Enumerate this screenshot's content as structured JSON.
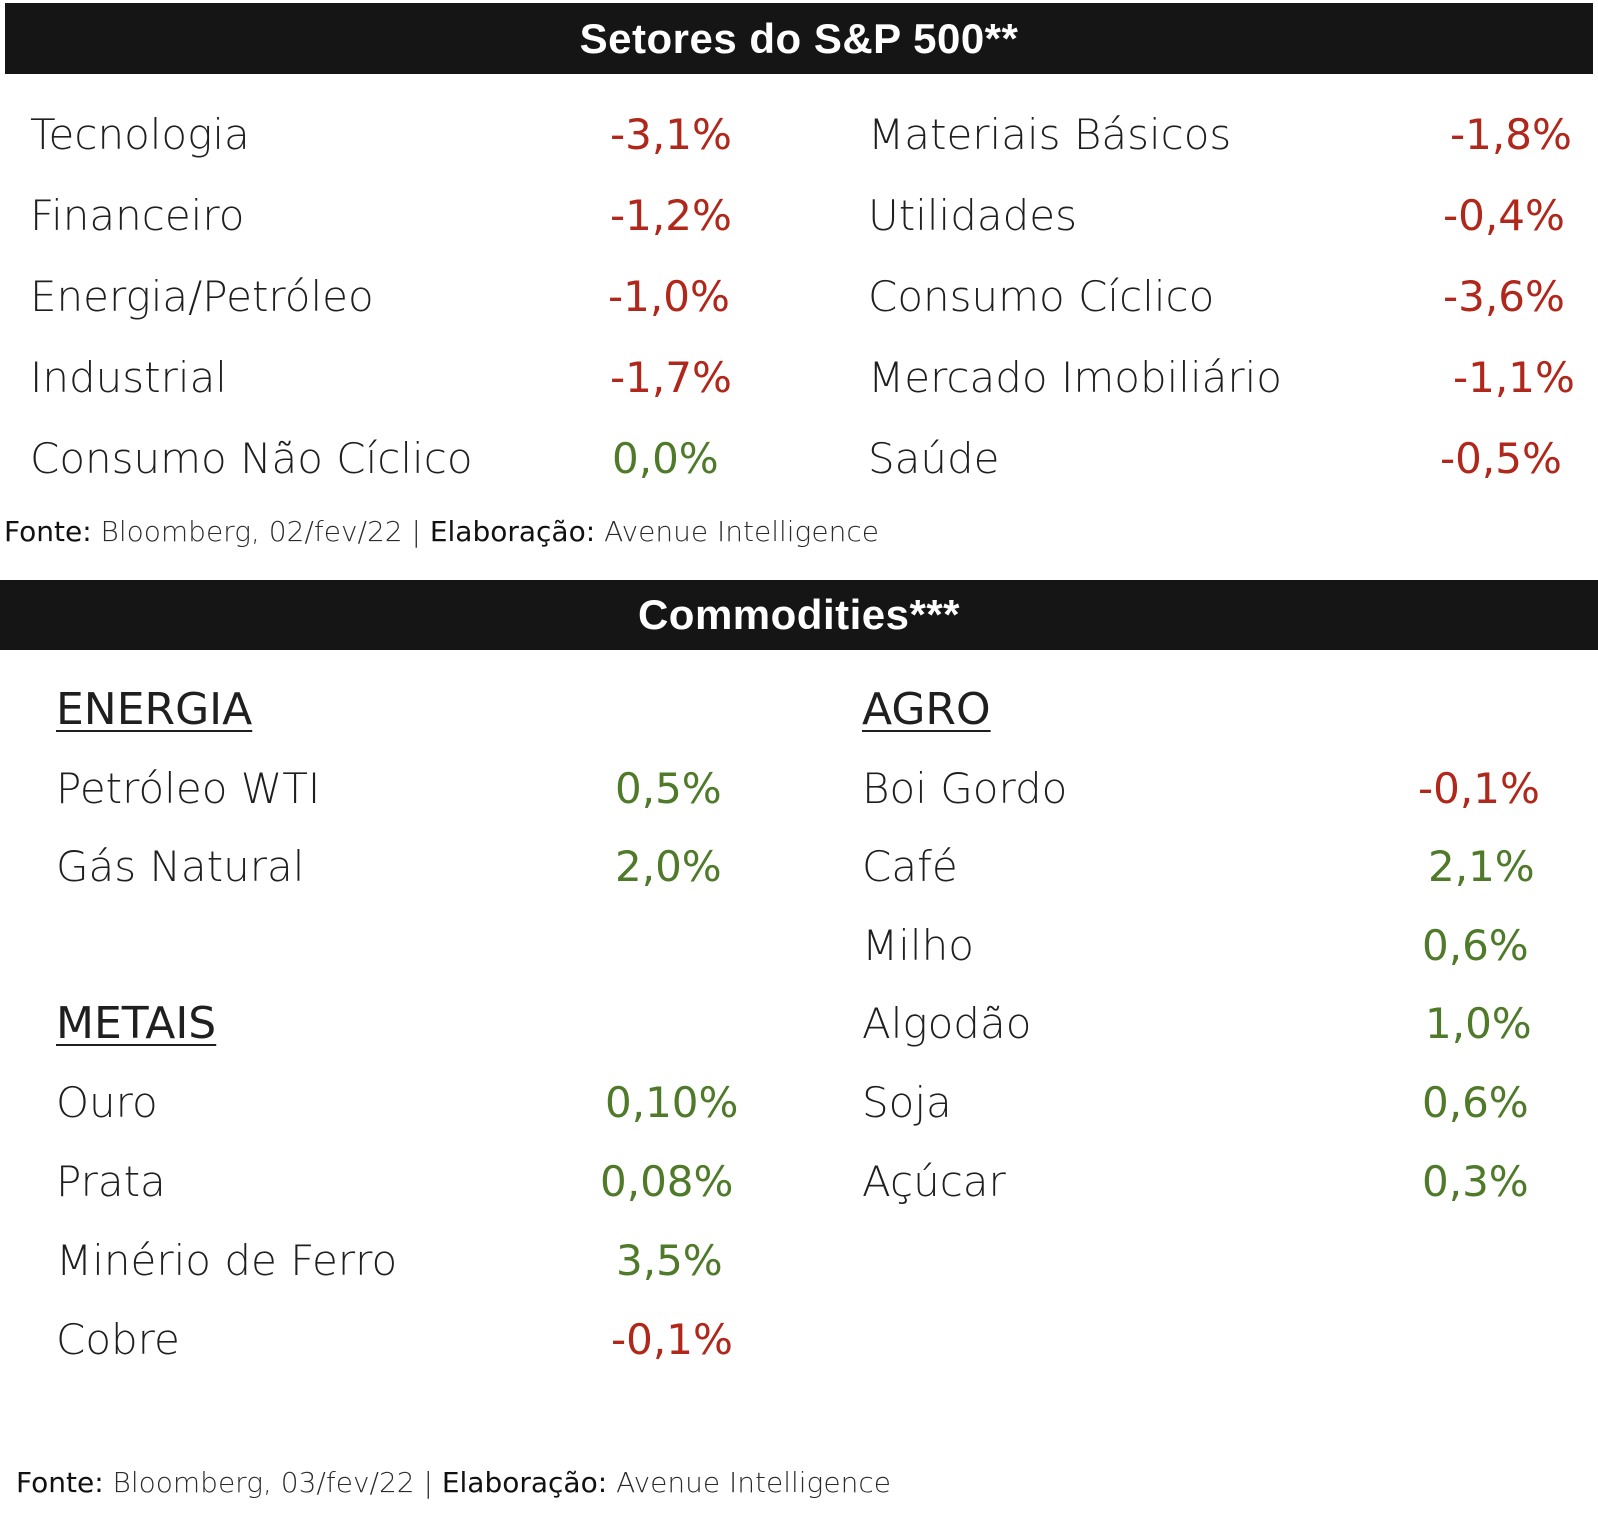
{
  "sectors": {
    "title": "Setores do S&P 500**",
    "left": [
      {
        "name": "Tecnologia",
        "value": "-3,1%",
        "tone": "neg"
      },
      {
        "name": "Financeiro",
        "value": "-1,2%",
        "tone": "neg"
      },
      {
        "name": "Energia/Petróleo",
        "value": "-1,0%",
        "tone": "neg"
      },
      {
        "name": "Industrial",
        "value": "-1,7%",
        "tone": "neg"
      },
      {
        "name": "Consumo Não Cíclico",
        "value": "0,0%",
        "tone": "pos"
      }
    ],
    "right": [
      {
        "name": "Materiais Básicos",
        "value": "-1,8%",
        "tone": "neg"
      },
      {
        "name": "Utilidades",
        "value": "-0,4%",
        "tone": "neg"
      },
      {
        "name": "Consumo Cíclico",
        "value": "-3,6%",
        "tone": "neg"
      },
      {
        "name": "Mercado Imobiliário",
        "value": "-1,1%",
        "tone": "neg"
      },
      {
        "name": "Saúde",
        "value": "-0,5%",
        "tone": "neg"
      }
    ],
    "source": {
      "fonte_label": "Fonte:",
      "fonte_text": "Bloomberg, 02/fev/22 |",
      "elab_label": "Elaboração:",
      "elab_text": "Avenue Intelligence"
    }
  },
  "commodities": {
    "title": "Commodities***",
    "energia": {
      "heading": "ENERGIA",
      "items": [
        {
          "name": "Petróleo WTI",
          "value": "0,5%",
          "tone": "pos"
        },
        {
          "name": "Gás Natural",
          "value": "2,0%",
          "tone": "pos"
        }
      ]
    },
    "metais": {
      "heading": "METAIS",
      "items": [
        {
          "name": "Ouro",
          "value": "0,10%",
          "tone": "pos"
        },
        {
          "name": "Prata",
          "value": "0,08%",
          "tone": "pos"
        },
        {
          "name": "Minério de Ferro",
          "value": "3,5%",
          "tone": "pos"
        },
        {
          "name": "Cobre",
          "value": "-0,1%",
          "tone": "neg"
        }
      ]
    },
    "agro": {
      "heading": "AGRO",
      "items": [
        {
          "name": "Boi Gordo",
          "value": "-0,1%",
          "tone": "neg"
        },
        {
          "name": "Café",
          "value": "2,1%",
          "tone": "pos"
        },
        {
          "name": "Milho",
          "value": "0,6%",
          "tone": "pos"
        },
        {
          "name": "Algodão",
          "value": "1,0%",
          "tone": "pos"
        },
        {
          "name": "Soja",
          "value": "0,6%",
          "tone": "pos"
        },
        {
          "name": "Açúcar",
          "value": "0,3%",
          "tone": "pos"
        }
      ]
    },
    "source": {
      "fonte_label": "Fonte:",
      "fonte_text": "Bloomberg, 03/fev/22 |",
      "elab_label": "Elaboração:",
      "elab_text": "Avenue Intelligence"
    }
  },
  "colors": {
    "negative": "#b0271b",
    "positive": "#4f7a2a",
    "header_bg": "#151515"
  }
}
